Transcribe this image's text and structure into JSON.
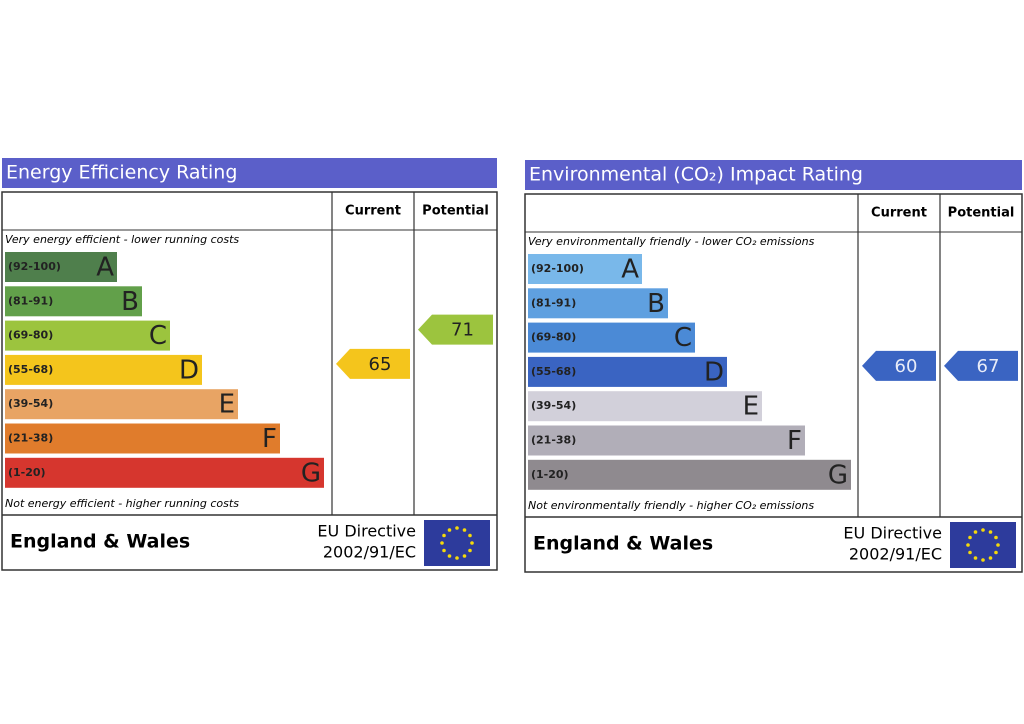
{
  "panels": [
    {
      "title": "Energy Efficiency Rating",
      "header_current": "Current",
      "header_potential": "Potential",
      "top_note": "Very energy efficient - lower running costs",
      "bottom_note": "Not energy efficient - higher running costs",
      "bands": [
        {
          "range": "(92-100)",
          "letter": "A",
          "color": "#4f7f4c"
        },
        {
          "range": "(81-91)",
          "letter": "B",
          "color": "#62a04a"
        },
        {
          "range": "(69-80)",
          "letter": "C",
          "color": "#9cc43e"
        },
        {
          "range": "(55-68)",
          "letter": "D",
          "color": "#f4c51c"
        },
        {
          "range": "(39-54)",
          "letter": "E",
          "color": "#e8a464"
        },
        {
          "range": "(21-38)",
          "letter": "F",
          "color": "#e07c2c"
        },
        {
          "range": "(1-20)",
          "letter": "G",
          "color": "#d6362e"
        }
      ],
      "current": 65,
      "potential": 71,
      "region": "England & Wales",
      "directive": "EU Directive",
      "directive_code": "2002/91/EC"
    },
    {
      "title": "Environmental (CO₂) Impact Rating",
      "header_current": "Current",
      "header_potential": "Potential",
      "top_note": "Very environmentally friendly - lower CO₂ emissions",
      "bottom_note": "Not environmentally friendly - higher CO₂ emissions",
      "bands": [
        {
          "range": "(92-100)",
          "letter": "A",
          "color": "#79b8ea"
        },
        {
          "range": "(81-91)",
          "letter": "B",
          "color": "#5fa0e0"
        },
        {
          "range": "(69-80)",
          "letter": "C",
          "color": "#4b8ad6"
        },
        {
          "range": "(55-68)",
          "letter": "D",
          "color": "#3a64c2"
        },
        {
          "range": "(39-54)",
          "letter": "E",
          "color": "#d2d0da"
        },
        {
          "range": "(21-38)",
          "letter": "F",
          "color": "#b1aeb8"
        },
        {
          "range": "(1-20)",
          "letter": "G",
          "color": "#8f8a8f"
        }
      ],
      "current": 60,
      "potential": 67,
      "region": "England & Wales",
      "directive": "EU Directive",
      "directive_code": "2002/91/EC"
    }
  ]
}
